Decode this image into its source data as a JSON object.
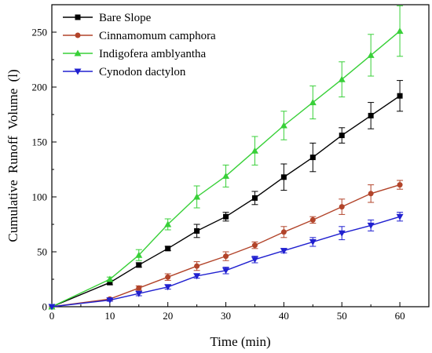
{
  "chart_data": {
    "type": "line",
    "xlabel": "Time (min)",
    "ylabel": "Cumulative Runoff Volume (l)",
    "xlim": [
      0,
      65
    ],
    "ylim": [
      0,
      275
    ],
    "xticks": [
      0,
      10,
      20,
      30,
      40,
      50,
      60
    ],
    "yticks": [
      0,
      50,
      100,
      150,
      200,
      250
    ],
    "legend_position": "top-left",
    "x": [
      0,
      10,
      15,
      20,
      25,
      30,
      35,
      40,
      45,
      50,
      55,
      60
    ],
    "series": [
      {
        "name": "Bare Slope",
        "color": "#000000",
        "marker": "square",
        "values": [
          0,
          22,
          38,
          53,
          69,
          82,
          99,
          118,
          136,
          156,
          174,
          192
        ],
        "errors": [
          0,
          2,
          2,
          2,
          6,
          4,
          6,
          12,
          13,
          7,
          12,
          14
        ]
      },
      {
        "name": "Cinnamomum camphora",
        "color": "#b2442a",
        "marker": "circle",
        "values": [
          0,
          7,
          17,
          27,
          37,
          46,
          56,
          68,
          79,
          91,
          103,
          111
        ],
        "errors": [
          0,
          1,
          2,
          3,
          4,
          4,
          3,
          5,
          3,
          7,
          8,
          4
        ]
      },
      {
        "name": "Indigofera amblyantha",
        "color": "#38d038",
        "marker": "triangle-up",
        "values": [
          0,
          25,
          47,
          75,
          100,
          119,
          142,
          165,
          186,
          207,
          229,
          251
        ],
        "errors": [
          0,
          2,
          5,
          5,
          10,
          10,
          13,
          13,
          15,
          16,
          19,
          23
        ]
      },
      {
        "name": "Cynodon dactylon",
        "color": "#2020d0",
        "marker": "triangle-down",
        "values": [
          0,
          6,
          12,
          18,
          28,
          33,
          43,
          51,
          59,
          67,
          74,
          82
        ],
        "errors": [
          0,
          1,
          2,
          2,
          2,
          3,
          3,
          2,
          4,
          6,
          5,
          4
        ]
      }
    ]
  }
}
